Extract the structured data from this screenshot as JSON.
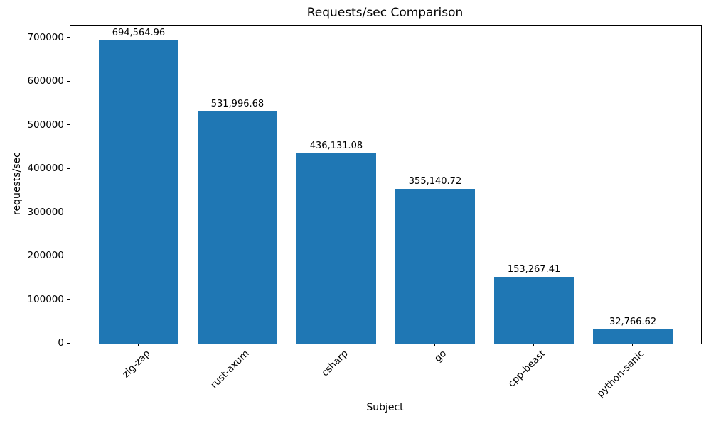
{
  "figure": {
    "background": "#ffffff",
    "text_color": "#000000"
  },
  "chart_data": {
    "type": "bar",
    "title": "Requests/sec Comparison",
    "xlabel": "Subject",
    "ylabel": "requests/sec",
    "categories": [
      "zig-zap",
      "rust-axum",
      "csharp",
      "go",
      "cpp-beast",
      "python-sanic"
    ],
    "values": [
      694564.96,
      531996.68,
      436131.08,
      355140.72,
      153267.41,
      32766.62
    ],
    "value_labels": [
      "694,564.96",
      "531,996.68",
      "436,131.08",
      "355,140.72",
      "153,267.41",
      "32,766.62"
    ],
    "bar_color": "#1f77b4",
    "bar_width_fraction": 0.8,
    "yticks": [
      0,
      100000,
      200000,
      300000,
      400000,
      500000,
      600000,
      700000
    ],
    "ytick_labels": [
      "0",
      "100000",
      "200000",
      "300000",
      "400000",
      "500000",
      "600000",
      "700000"
    ],
    "ylim": [
      0,
      729293
    ],
    "x_tick_rotation_deg": 45,
    "grid": false,
    "legend": "none"
  }
}
